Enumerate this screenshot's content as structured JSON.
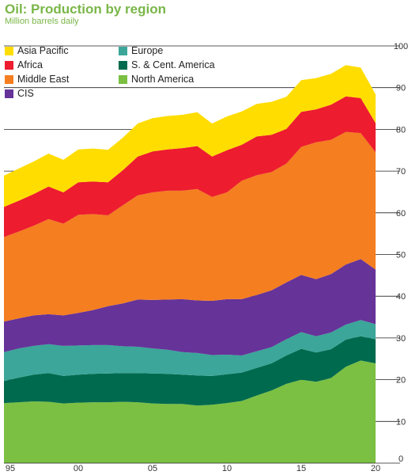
{
  "chart_data": {
    "type": "area",
    "stacked": true,
    "title": "Oil: Production by region",
    "subtitle": "Million barrels daily",
    "x": [
      1995,
      1996,
      1997,
      1998,
      1999,
      2000,
      2001,
      2002,
      2003,
      2004,
      2005,
      2006,
      2007,
      2008,
      2009,
      2010,
      2011,
      2012,
      2013,
      2014,
      2015,
      2016,
      2017,
      2018,
      2019,
      2020
    ],
    "x_tick_labels": [
      "95",
      "00",
      "05",
      "10",
      "15",
      "20"
    ],
    "x_tick_years": [
      1995,
      2000,
      2005,
      2010,
      2015,
      2020
    ],
    "ylim": [
      0,
      100
    ],
    "y_ticks": [
      0,
      10,
      20,
      30,
      40,
      50,
      60,
      70,
      80,
      90,
      100
    ],
    "legend_position": "top-left",
    "series": [
      {
        "name": "North America",
        "color": "#7bc043",
        "values": [
          14.4,
          14.6,
          14.8,
          14.7,
          14.3,
          14.5,
          14.6,
          14.6,
          14.7,
          14.6,
          14.3,
          14.2,
          14.2,
          13.8,
          14.0,
          14.4,
          14.9,
          16.2,
          17.4,
          19.0,
          20.0,
          19.5,
          20.4,
          23.1,
          24.6,
          23.9
        ]
      },
      {
        "name": "S. & Cent. America",
        "color": "#006a4e",
        "values": [
          5.3,
          5.9,
          6.4,
          6.9,
          6.6,
          6.7,
          6.8,
          6.9,
          6.9,
          7.0,
          7.2,
          7.2,
          7.0,
          7.2,
          6.9,
          6.9,
          6.8,
          6.6,
          6.5,
          6.8,
          7.4,
          7.0,
          6.9,
          6.5,
          5.8,
          5.8
        ]
      },
      {
        "name": "Europe",
        "color": "#3ba699",
        "values": [
          6.9,
          7.0,
          6.9,
          6.9,
          7.2,
          7.0,
          6.9,
          6.8,
          6.4,
          6.3,
          6.0,
          5.8,
          5.4,
          5.4,
          5.0,
          4.7,
          4.1,
          4.0,
          3.9,
          3.9,
          4.0,
          3.9,
          4.0,
          3.6,
          3.9,
          3.6
        ]
      },
      {
        "name": "CIS",
        "color": "#663399",
        "values": [
          7.3,
          7.2,
          7.3,
          7.2,
          7.3,
          7.8,
          8.4,
          9.3,
          10.3,
          11.3,
          11.6,
          12.0,
          12.7,
          12.6,
          13.0,
          13.3,
          13.5,
          13.5,
          13.6,
          13.6,
          13.7,
          13.7,
          14.0,
          14.4,
          14.6,
          13.1
        ]
      },
      {
        "name": "Middle East",
        "color": "#f47e20",
        "values": [
          20.3,
          20.8,
          21.5,
          22.8,
          22.0,
          23.5,
          23.0,
          21.8,
          23.5,
          25.0,
          25.8,
          26.1,
          26.0,
          26.7,
          24.9,
          25.6,
          28.4,
          28.7,
          28.4,
          28.5,
          30.7,
          32.8,
          32.2,
          31.8,
          30.2,
          28.1
        ]
      },
      {
        "name": "Africa",
        "color": "#ed1c2e",
        "values": [
          7.2,
          7.4,
          7.6,
          7.8,
          7.5,
          7.8,
          7.8,
          7.9,
          8.4,
          9.3,
          9.8,
          9.9,
          10.2,
          10.3,
          9.7,
          10.1,
          8.6,
          9.3,
          8.9,
          8.3,
          8.4,
          7.9,
          8.4,
          8.5,
          8.4,
          7.0
        ]
      },
      {
        "name": "Asia Pacific",
        "color": "#ffdd00",
        "values": [
          7.5,
          7.7,
          7.8,
          7.9,
          7.8,
          7.9,
          7.9,
          7.8,
          7.8,
          7.9,
          8.0,
          8.0,
          8.0,
          8.1,
          7.9,
          8.1,
          8.0,
          7.8,
          7.9,
          7.7,
          7.6,
          7.5,
          7.4,
          7.5,
          7.3,
          6.9
        ]
      }
    ]
  },
  "legend": {
    "items": [
      {
        "label": "Asia Pacific",
        "color": "#ffdd00"
      },
      {
        "label": "Africa",
        "color": "#ed1c2e"
      },
      {
        "label": "Middle East",
        "color": "#f47e20"
      },
      {
        "label": "CIS",
        "color": "#663399"
      },
      {
        "label": "Europe",
        "color": "#3ba699"
      },
      {
        "label": "S. & Cent. America",
        "color": "#006a4e"
      },
      {
        "label": "North America",
        "color": "#7bc043"
      }
    ]
  }
}
